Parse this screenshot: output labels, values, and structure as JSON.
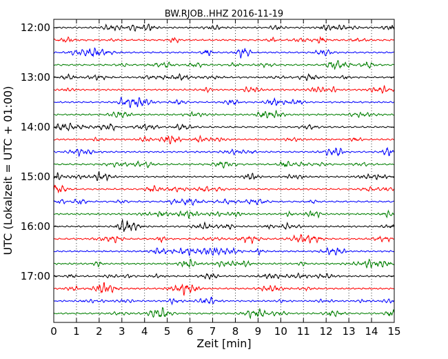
{
  "chart_data": {
    "type": "line",
    "title": "BW.RJOB..HHZ 2016-11-19",
    "xlabel": "Zeit  [min]",
    "ylabel": "UTC (Lokalzeit = UTC + 01:00)",
    "xlim": [
      0,
      15
    ],
    "x_ticks": [
      "0",
      "1",
      "2",
      "3",
      "4",
      "5",
      "6",
      "7",
      "8",
      "9",
      "10",
      "11",
      "12",
      "13",
      "14",
      "15"
    ],
    "y_ticks": [
      {
        "label": "12:00",
        "row": 0
      },
      {
        "label": "13:00",
        "row": 4
      },
      {
        "label": "14:00",
        "row": 8
      },
      {
        "label": "15:00",
        "row": 12
      },
      {
        "label": "16:00",
        "row": 16
      },
      {
        "label": "17:00",
        "row": 20
      }
    ],
    "row_count": 24,
    "row_minutes": 15,
    "grid": "vertical dotted",
    "colors": [
      "#000000",
      "#ff0000",
      "#0000ff",
      "#007f00"
    ]
  }
}
